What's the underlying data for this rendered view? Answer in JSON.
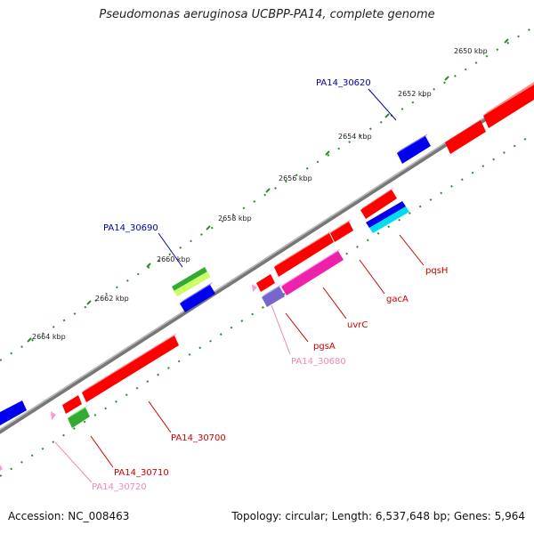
{
  "title": "Pseudomonas aeruginosa UCBPP-PA14, complete genome",
  "footer": {
    "accession": "Accession: NC_008463",
    "summary": "Topology: circular; Length: 6,537,648 bp; Genes: 5,964"
  },
  "ticks": [
    "2650 kbp",
    "2652 kbp",
    "2654 kbp",
    "2656 kbp",
    "2658 kbp",
    "2660 kbp",
    "2662 kbp",
    "2664 kbp"
  ],
  "gene_labels": [
    {
      "name": "PA14_30620",
      "color": "#0000aa"
    },
    {
      "name": "PA14_30690",
      "color": "#0000aa"
    },
    {
      "name": "pqsH",
      "color": "#cc0000"
    },
    {
      "name": "gacA",
      "color": "#cc0000"
    },
    {
      "name": "uvrC",
      "color": "#cc0000"
    },
    {
      "name": "pgsA",
      "color": "#cc0000"
    },
    {
      "name": "PA14_30680",
      "color": "#ee88bb"
    },
    {
      "name": "PA14_30700",
      "color": "#cc0000"
    },
    {
      "name": "PA14_30710",
      "color": "#cc0000"
    },
    {
      "name": "PA14_30720",
      "color": "#ee88bb"
    }
  ],
  "colors": {
    "backbone": "#888888",
    "tick_dots": "#2e8b2e",
    "gene_red": "#ff0000",
    "gene_blue": "#0000ee",
    "gene_green": "#33aa33",
    "gene_magenta": "#ee22aa",
    "gene_cyan": "#00ddee",
    "gene_purple": "#7766cc",
    "gene_pink": "#ff99cc"
  }
}
